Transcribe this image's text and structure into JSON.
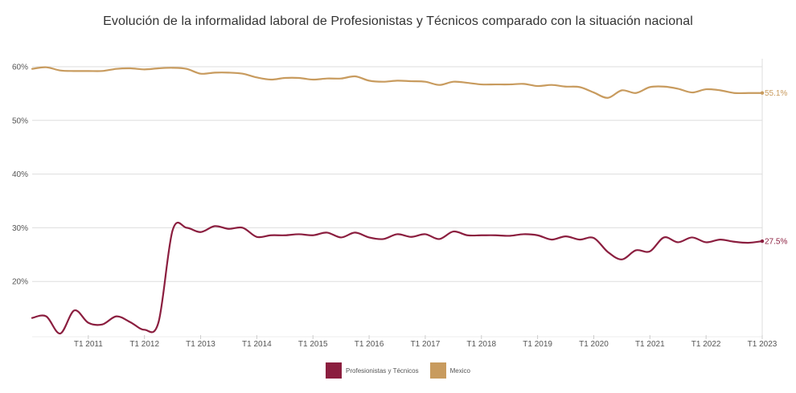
{
  "chart_data": {
    "type": "line",
    "title": "Evolución de la informalidad laboral de Profesionistas y Técnicos comparado con la situación nacional",
    "xlabel": "",
    "ylabel": "",
    "ylim": [
      10,
      60
    ],
    "y_ticks": [
      "20%",
      "30%",
      "40%",
      "50%",
      "60%"
    ],
    "y_tick_values": [
      20,
      30,
      40,
      50,
      60
    ],
    "x_ticks": [
      "T1 2011",
      "T1 2012",
      "T1 2013",
      "T1 2014",
      "T1 2015",
      "T1 2016",
      "T1 2017",
      "T1 2018",
      "T1 2019",
      "T1 2020",
      "T1 2021",
      "T1 2022",
      "T1 2023"
    ],
    "x_tick_values": [
      2011,
      2012,
      2013,
      2014,
      2015,
      2016,
      2017,
      2018,
      2019,
      2020,
      2021,
      2022,
      2023
    ],
    "xlim": [
      2010.0,
      2023.0
    ],
    "grid": true,
    "legend_position": "bottom-center",
    "series": [
      {
        "name": "Profesionistas y Técnicos",
        "color": "#8b1e3f",
        "end_label": "27.5%",
        "x": [
          2010.0,
          2010.25,
          2010.5,
          2010.75,
          2011.0,
          2011.25,
          2011.5,
          2011.75,
          2012.0,
          2012.25,
          2012.5,
          2012.75,
          2013.0,
          2013.25,
          2013.5,
          2013.75,
          2014.0,
          2014.25,
          2014.5,
          2014.75,
          2015.0,
          2015.25,
          2015.5,
          2015.75,
          2016.0,
          2016.25,
          2016.5,
          2016.75,
          2017.0,
          2017.25,
          2017.5,
          2017.75,
          2018.0,
          2018.25,
          2018.5,
          2018.75,
          2019.0,
          2019.25,
          2019.5,
          2019.75,
          2020.0,
          2020.25,
          2020.5,
          2020.75,
          2021.0,
          2021.25,
          2021.5,
          2021.75,
          2022.0,
          2022.25,
          2022.5,
          2022.75,
          2023.0
        ],
        "values": [
          13.2,
          13.5,
          10.3,
          14.6,
          12.3,
          12.0,
          13.5,
          12.4,
          11.0,
          12.4,
          29.5,
          30.0,
          29.2,
          30.3,
          29.8,
          30.0,
          28.3,
          28.6,
          28.6,
          28.8,
          28.6,
          29.1,
          28.2,
          29.1,
          28.2,
          27.9,
          28.8,
          28.3,
          28.8,
          27.9,
          29.3,
          28.6,
          28.6,
          28.6,
          28.5,
          28.8,
          28.6,
          27.8,
          28.4,
          27.8,
          28.1,
          25.5,
          24.1,
          25.8,
          25.6,
          28.2,
          27.3,
          28.2,
          27.3,
          27.8,
          27.4,
          27.2,
          27.5
        ]
      },
      {
        "name": "Mexico",
        "color": "#c89b5e",
        "end_label": "55.1%",
        "x": [
          2010.0,
          2010.25,
          2010.5,
          2010.75,
          2011.0,
          2011.25,
          2011.5,
          2011.75,
          2012.0,
          2012.25,
          2012.5,
          2012.75,
          2013.0,
          2013.25,
          2013.5,
          2013.75,
          2014.0,
          2014.25,
          2014.5,
          2014.75,
          2015.0,
          2015.25,
          2015.5,
          2015.75,
          2016.0,
          2016.25,
          2016.5,
          2016.75,
          2017.0,
          2017.25,
          2017.5,
          2017.75,
          2018.0,
          2018.25,
          2018.5,
          2018.75,
          2019.0,
          2019.25,
          2019.5,
          2019.75,
          2020.0,
          2020.25,
          2020.5,
          2020.75,
          2021.0,
          2021.25,
          2021.5,
          2021.75,
          2022.0,
          2022.25,
          2022.5,
          2022.75,
          2023.0
        ],
        "values": [
          59.6,
          59.9,
          59.3,
          59.2,
          59.2,
          59.2,
          59.6,
          59.7,
          59.5,
          59.7,
          59.8,
          59.6,
          58.7,
          58.9,
          58.9,
          58.7,
          58.0,
          57.6,
          57.9,
          57.9,
          57.6,
          57.8,
          57.8,
          58.2,
          57.4,
          57.2,
          57.4,
          57.3,
          57.2,
          56.6,
          57.2,
          57.0,
          56.7,
          56.7,
          56.7,
          56.8,
          56.4,
          56.6,
          56.3,
          56.2,
          55.2,
          54.2,
          55.6,
          55.1,
          56.2,
          56.3,
          55.9,
          55.2,
          55.8,
          55.6,
          55.1,
          55.1,
          55.1
        ]
      }
    ]
  }
}
